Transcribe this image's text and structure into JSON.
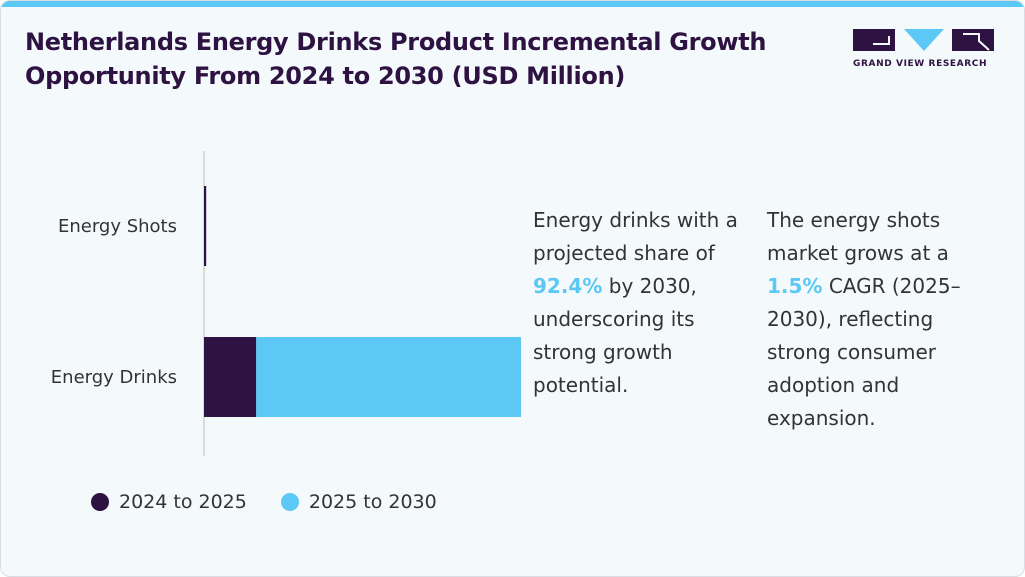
{
  "header": {
    "title": "Netherlands Energy Drinks Product Incremental Growth Opportunity From 2024 to 2030 (USD Million)"
  },
  "brand": {
    "name": "GRAND VIEW RESEARCH",
    "logo_icon": "gvr-logo-icon"
  },
  "colors": {
    "background": "#f4f9fc",
    "title": "#2e1242",
    "series_dark": "#2e1242",
    "series_light": "#5bc8f5",
    "accent_bar": "#5bc8f5"
  },
  "chart_data": {
    "type": "bar",
    "orientation": "horizontal",
    "stacked": true,
    "title": "Netherlands Energy Drinks Product Incremental Growth Opportunity From 2024 to 2030 (USD Million)",
    "categories": [
      "Energy Shots",
      "Energy Drinks"
    ],
    "series": [
      {
        "name": "2024 to 2025",
        "values": [
          0.4,
          9.5
        ],
        "color": "#2e1242"
      },
      {
        "name": "2025 to 2030",
        "values": [
          0.0,
          50.5
        ],
        "color": "#5bc8f5"
      }
    ],
    "xlim": [
      0,
      60
    ],
    "xlabel": "",
    "ylabel": "",
    "grid": false,
    "legend_position": "bottom-left"
  },
  "notes": [
    {
      "before": "Energy drinks with a projected share of ",
      "highlight": "92.4%",
      "after": " by 2030, underscoring its strong growth potential."
    },
    {
      "before": "The energy shots market grows at a ",
      "highlight": "1.5%",
      "after": " CAGR (2025–2030), reflecting strong consumer adoption and expansion."
    }
  ]
}
